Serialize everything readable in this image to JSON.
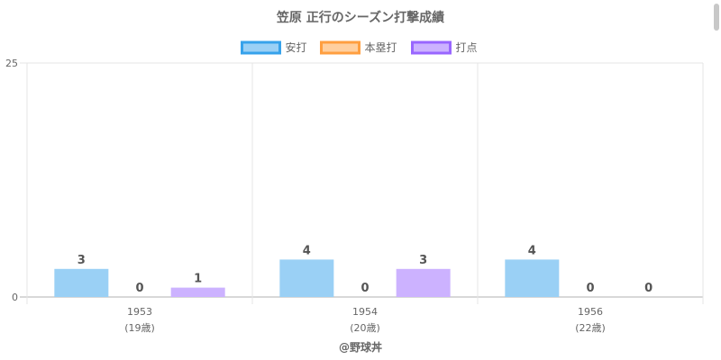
{
  "chart_data": {
    "type": "bar",
    "title": "笠原 正行のシーズン打撃成績",
    "categories": [
      "1953",
      "1954",
      "1956"
    ],
    "sublabels": [
      "(19歳)",
      "(20歳)",
      "(22歳)"
    ],
    "series": [
      {
        "name": "安打",
        "values": [
          3,
          4,
          4
        ],
        "fill": "#9ad0f5",
        "stroke": "#36a2eb"
      },
      {
        "name": "本塁打",
        "values": [
          0,
          0,
          0
        ],
        "fill": "#ffcf9f",
        "stroke": "#ff9f40"
      },
      {
        "name": "打点",
        "values": [
          1,
          3,
          0
        ],
        "fill": "#ccb2ff",
        "stroke": "#9966ff"
      }
    ],
    "ylim": [
      0,
      25
    ],
    "yticks": [
      "0",
      "25"
    ],
    "grid": true,
    "legend": "top",
    "xlabel": "",
    "ylabel": ""
  },
  "footer": "@野球丼"
}
